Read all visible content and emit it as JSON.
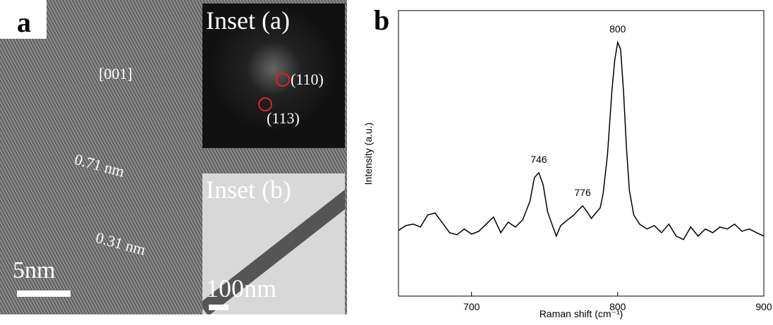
{
  "panel_a": {
    "label": "a",
    "direction": "[001]",
    "spacing_1": "0.71 nm",
    "spacing_2": "0.31 nm",
    "scale_bar": "5nm",
    "inset_a": {
      "title": "Inset (a)",
      "spot_1": "(110)",
      "spot_2": "(113)"
    },
    "inset_b": {
      "title": "Inset (b)",
      "scale_bar": "100nm"
    }
  },
  "chart_data": {
    "type": "line",
    "panel_label": "b",
    "xlabel": "Raman shift (cm⁻¹)",
    "ylabel": "Intensity (a.u.)",
    "color": "#000000",
    "x": [
      650,
      655,
      660,
      665,
      670,
      675,
      680,
      685,
      690,
      695,
      700,
      705,
      710,
      715,
      720,
      725,
      730,
      735,
      740,
      743,
      746,
      749,
      752,
      755,
      758,
      761,
      765,
      770,
      773,
      776,
      779,
      782,
      785,
      788,
      790,
      793,
      796,
      798,
      800,
      802,
      804,
      806,
      808,
      811,
      815,
      820,
      825,
      830,
      835,
      840,
      845,
      850,
      855,
      860,
      865,
      870,
      875,
      880,
      885,
      890,
      895,
      900
    ],
    "values": [
      23.0,
      24.7,
      25.2,
      24.2,
      28.4,
      29.1,
      25.7,
      22.2,
      21.5,
      23.5,
      21.7,
      22.7,
      25.2,
      27.7,
      22.2,
      25.9,
      24.2,
      26.7,
      33.3,
      41.5,
      43.2,
      39.0,
      29.6,
      25.2,
      21.0,
      24.7,
      26.4,
      28.4,
      30.1,
      31.6,
      29.6,
      27.2,
      29.1,
      30.9,
      35.8,
      49.4,
      71.6,
      82.7,
      88.9,
      86.4,
      71.6,
      51.9,
      37.0,
      28.4,
      25.2,
      23.5,
      24.7,
      22.2,
      25.2,
      21.0,
      19.8,
      24.2,
      21.0,
      23.5,
      22.2,
      24.2,
      23.5,
      25.2,
      22.7,
      23.5,
      22.2,
      21.0
    ],
    "peak_labels": [
      746,
      776,
      800
    ],
    "xlim": [
      650,
      900
    ],
    "xticks": [
      700,
      800,
      900
    ],
    "ylim": [
      0,
      100
    ]
  }
}
